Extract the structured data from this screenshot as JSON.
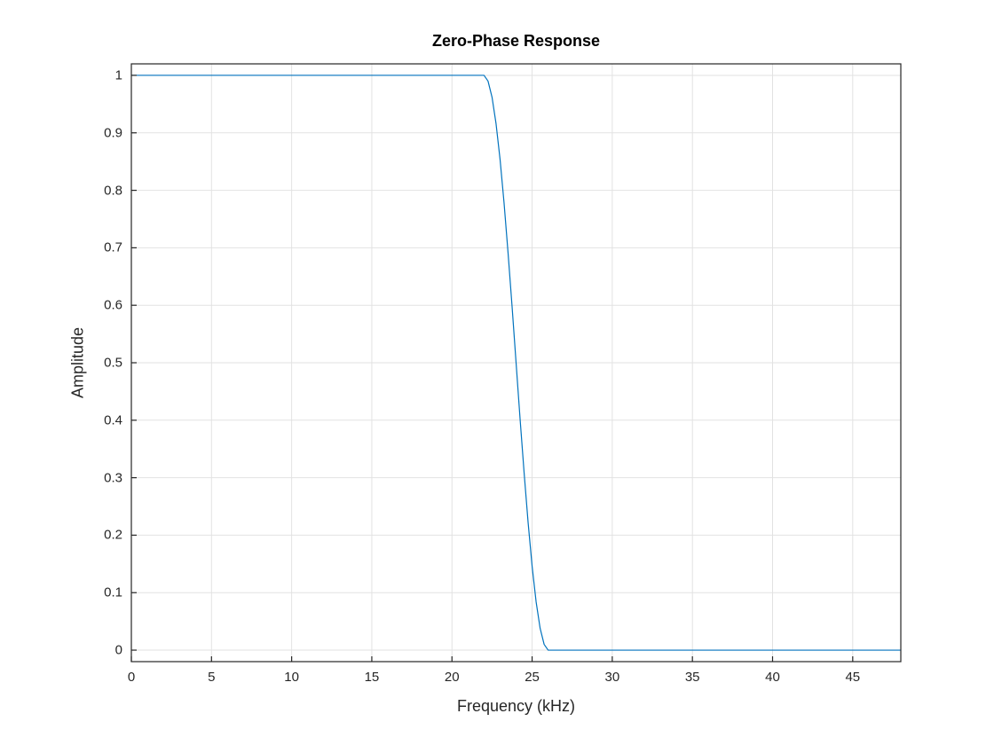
{
  "chart_data": {
    "type": "line",
    "title": "Zero-Phase Response",
    "xlabel": "Frequency (kHz)",
    "ylabel": "Amplitude",
    "xlim": [
      0,
      48
    ],
    "ylim": [
      -0.02,
      1.02
    ],
    "x_ticks": [
      0,
      5,
      10,
      15,
      20,
      25,
      30,
      35,
      40,
      45
    ],
    "y_ticks": [
      0,
      0.1,
      0.2,
      0.3,
      0.4,
      0.5,
      0.6,
      0.7,
      0.8,
      0.9,
      1
    ],
    "grid": true,
    "legend": "none",
    "line_color": "#0072BD",
    "grid_color": "#e2e2e2",
    "axis_color": "#262626",
    "x": [
      0,
      5,
      10,
      15,
      20,
      21,
      21.5,
      22,
      22.25,
      22.5,
      22.75,
      23,
      23.25,
      23.5,
      23.75,
      24,
      24.25,
      24.5,
      24.75,
      25,
      25.25,
      25.5,
      25.75,
      26,
      26.5,
      27,
      30,
      35,
      40,
      45,
      48
    ],
    "y": [
      1,
      1,
      1,
      1,
      1,
      1,
      1,
      1,
      0.99,
      0.962,
      0.916,
      0.854,
      0.778,
      0.691,
      0.598,
      0.5,
      0.402,
      0.309,
      0.222,
      0.146,
      0.084,
      0.038,
      0.01,
      0,
      0,
      0,
      0,
      0,
      0,
      0,
      0
    ]
  }
}
